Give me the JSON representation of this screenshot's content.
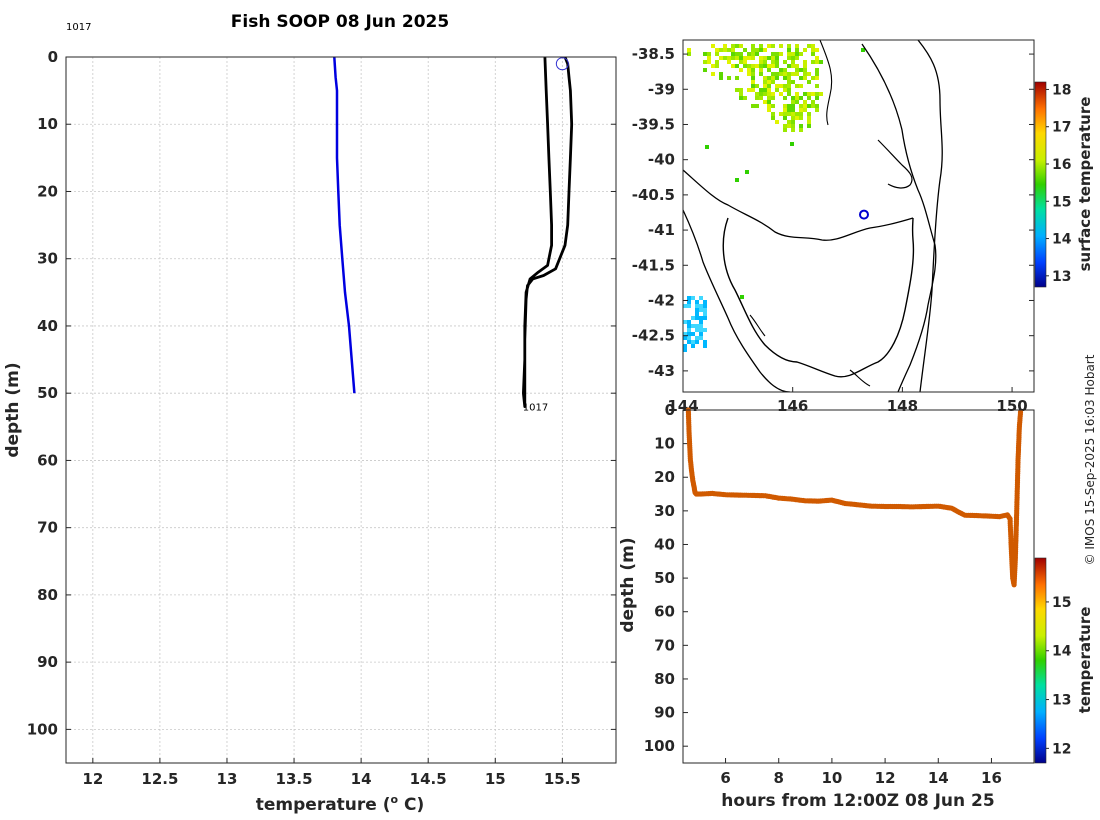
{
  "colors": {
    "profile_line": "#0000e0",
    "contour": "#000000",
    "track_points": "#d05a00",
    "coast": "#000000"
  },
  "chart_data": [
    {
      "id": "profile",
      "type": "line",
      "title": "Fish SOOP 08 Jun 2025",
      "xlabel": "temperature (° C)",
      "ylabel": "depth (m)",
      "xlim": [
        11.8,
        15.9
      ],
      "ylim": [
        105,
        0
      ],
      "x_ticks": [
        12,
        12.5,
        13,
        13.5,
        14,
        14.5,
        15,
        15.5
      ],
      "x_tick_labels": [
        "12",
        "12.5",
        "13",
        "13.5",
        "14",
        "14.5",
        "15",
        "15.5"
      ],
      "y_ticks": [
        0,
        10,
        20,
        30,
        40,
        50,
        60,
        70,
        80,
        90,
        100
      ],
      "y_tick_labels": [
        "0",
        "10",
        "20",
        "30",
        "40",
        "50",
        "60",
        "70",
        "80",
        "90",
        "100"
      ],
      "grid": true,
      "annotations": [
        {
          "text": "1017",
          "x": 11.8,
          "y": -2.5
        },
        {
          "text": "1017",
          "x": 15.22,
          "y": 52
        }
      ],
      "marker": {
        "x": 15.5,
        "y": 1
      },
      "series": [
        {
          "name": "profile",
          "x": [
            13.8,
            13.81,
            13.82,
            13.82,
            13.82,
            13.83,
            13.84,
            13.86,
            13.88,
            13.91,
            13.93,
            13.95
          ],
          "y": [
            0,
            3,
            5,
            10,
            15,
            20,
            25,
            30,
            35,
            40,
            45,
            50
          ]
        },
        {
          "name": "track-outline",
          "x": [
            15.37,
            15.38,
            15.39,
            15.4,
            15.41,
            15.42,
            15.42,
            15.4,
            15.39,
            15.32,
            15.26,
            15.23,
            15.22,
            15.22,
            15.21,
            15.22,
            15.22,
            15.22,
            15.23,
            15.24,
            15.28,
            15.36,
            15.45,
            15.52,
            15.54,
            15.55,
            15.56,
            15.57,
            15.56,
            15.55,
            15.54,
            15.52
          ],
          "y": [
            0,
            5,
            10,
            15,
            20,
            25,
            28,
            30,
            31,
            32,
            33,
            35,
            40,
            45,
            50,
            52,
            48,
            42,
            36,
            34,
            33,
            32.5,
            31.5,
            28,
            25,
            20,
            15,
            10,
            5,
            3,
            1,
            0
          ]
        }
      ]
    },
    {
      "id": "map",
      "type": "heatmap",
      "colorbar_label": "surface temperature",
      "colorbar_range": [
        12.7,
        18.2
      ],
      "colorbar_ticks": [
        13,
        14,
        15,
        16,
        17,
        18
      ],
      "colorbar_tick_labels": [
        "13",
        "14",
        "15",
        "16",
        "17",
        "18"
      ],
      "xlim": [
        144,
        150.4
      ],
      "ylim": [
        -43.3,
        -38.3
      ],
      "x_ticks": [
        144,
        146,
        148,
        150
      ],
      "x_tick_labels": [
        "144",
        "146",
        "148",
        "150"
      ],
      "y_ticks": [
        -38.5,
        -39,
        -39.5,
        -40,
        -40.5,
        -41,
        -41.5,
        -42,
        -42.5,
        -43
      ],
      "y_tick_labels": [
        "-38.5",
        "-39",
        "-39.5",
        "-40",
        "-40.5",
        "-41",
        "-41.5",
        "-42",
        "-42.5",
        "-43"
      ],
      "station": {
        "lon": 147.3,
        "lat": -40.78
      },
      "warm_patch_sst": 15.5,
      "cool_patch_sst": 13.8
    },
    {
      "id": "track",
      "type": "scatter",
      "xlabel": "hours from 12:00Z 08 Jun 25",
      "ylabel": "depth (m)",
      "colorbar_label": "temperature",
      "colorbar_range": [
        11.7,
        15.9
      ],
      "colorbar_ticks": [
        12,
        13,
        14,
        15
      ],
      "colorbar_tick_labels": [
        "12",
        "13",
        "14",
        "15"
      ],
      "xlim": [
        4.4,
        17.6
      ],
      "ylim": [
        105,
        0
      ],
      "x_ticks": [
        6,
        8,
        10,
        12,
        14,
        16
      ],
      "x_tick_labels": [
        "6",
        "8",
        "10",
        "12",
        "14",
        "16"
      ],
      "y_ticks": [
        0,
        10,
        20,
        30,
        40,
        50,
        60,
        70,
        80,
        90,
        100
      ],
      "y_tick_labels": [
        "0",
        "10",
        "20",
        "30",
        "40",
        "50",
        "60",
        "70",
        "80",
        "90",
        "100"
      ],
      "x": [
        4.6,
        4.62,
        4.65,
        4.68,
        4.72,
        4.77,
        4.82,
        4.85,
        4.9,
        5.0,
        5.5,
        6.0,
        6.5,
        7.0,
        7.5,
        8.0,
        8.5,
        9.0,
        9.5,
        10.0,
        10.5,
        11.0,
        11.5,
        12.0,
        12.5,
        13.0,
        13.5,
        14.0,
        14.5,
        14.8,
        15.0,
        15.5,
        16.0,
        16.3,
        16.6,
        16.7,
        16.75,
        16.8,
        16.85,
        16.9,
        16.95,
        17.0,
        17.05,
        17.1
      ],
      "y": [
        0,
        5,
        10,
        15,
        18,
        21,
        23,
        24.5,
        25,
        25,
        24.8,
        25.2,
        25.3,
        25.4,
        25.5,
        26.2,
        26.5,
        27,
        27.1,
        26.8,
        27.8,
        28.2,
        28.6,
        28.7,
        28.7,
        28.8,
        28.7,
        28.6,
        29.2,
        30.5,
        31.3,
        31.4,
        31.6,
        31.7,
        31.2,
        32.4,
        42,
        50,
        52,
        44,
        30,
        15,
        5,
        0
      ]
    }
  ],
  "copyright": "© IMOS 15-Sep-2025 16:03 Hobart"
}
